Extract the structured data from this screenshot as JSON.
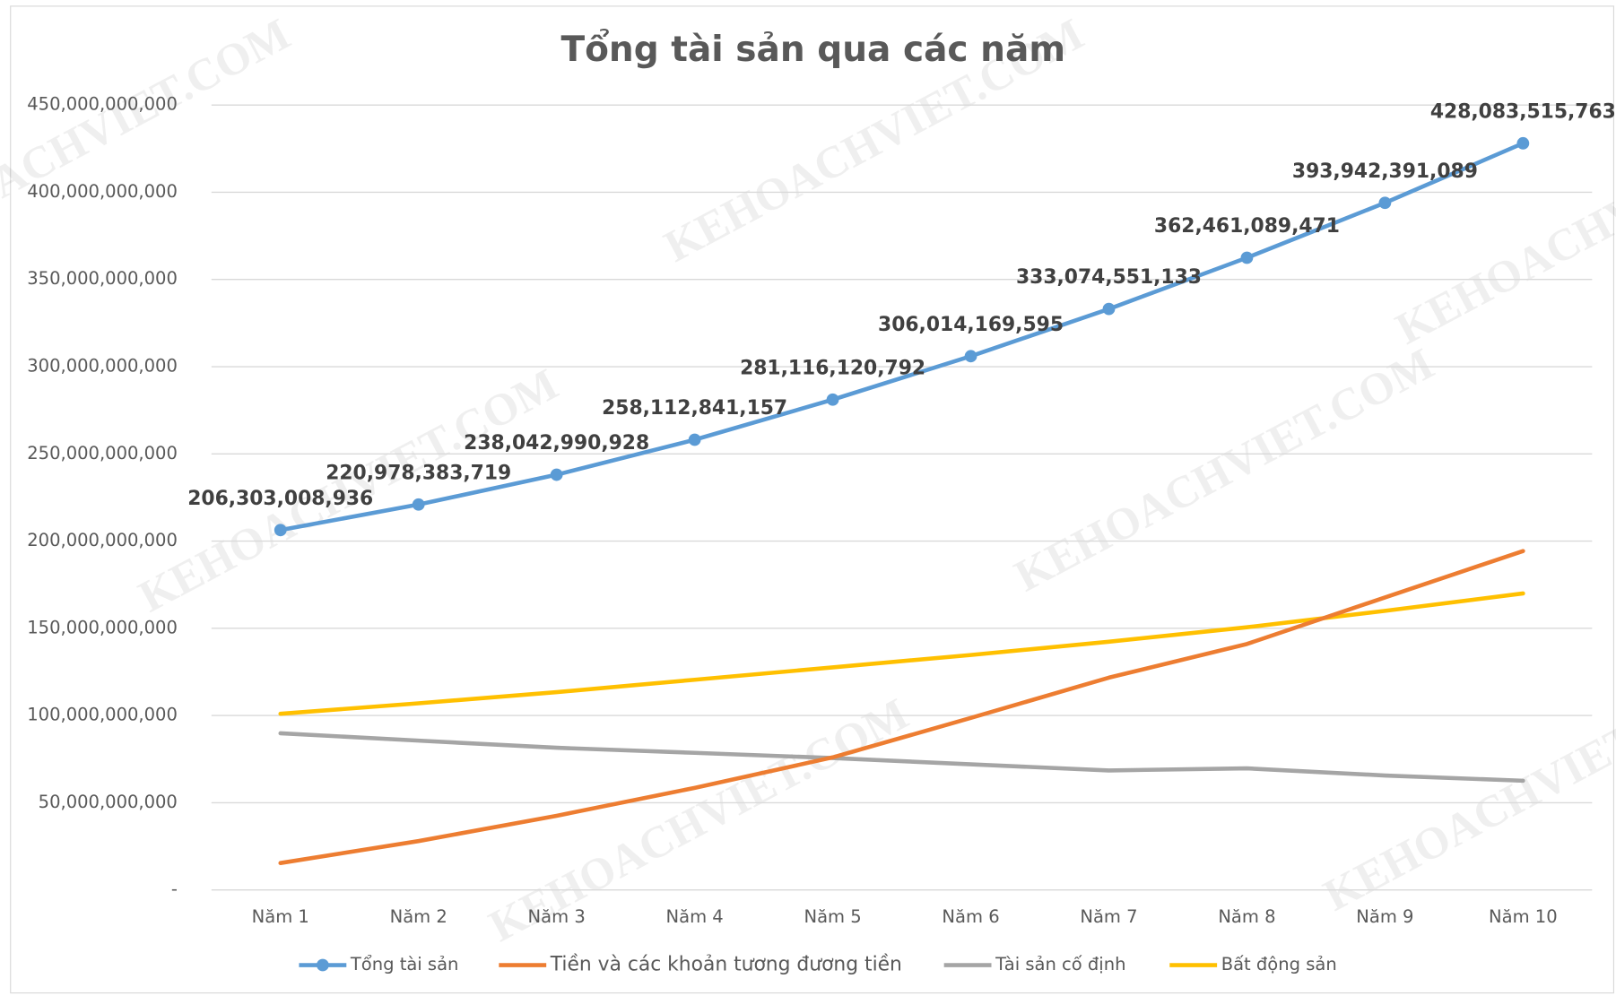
{
  "chart_data": {
    "type": "line",
    "title": "Tổng tài sản qua các năm",
    "watermark": "KEHOACHVIET.COM",
    "categories": [
      "Năm 1",
      "Năm 2",
      "Năm 3",
      "Năm 4",
      "Năm 5",
      "Năm 6",
      "Năm 7",
      "Năm 8",
      "Năm 9",
      "Năm 10"
    ],
    "ylim": [
      0,
      450000000000
    ],
    "yticks": [
      {
        "value": 0,
        "label": "-"
      },
      {
        "value": 50000000000,
        "label": "50,000,000,000"
      },
      {
        "value": 100000000000,
        "label": "100,000,000,000"
      },
      {
        "value": 150000000000,
        "label": "150,000,000,000"
      },
      {
        "value": 200000000000,
        "label": "200,000,000,000"
      },
      {
        "value": 250000000000,
        "label": "250,000,000,000"
      },
      {
        "value": 300000000000,
        "label": "300,000,000,000"
      },
      {
        "value": 350000000000,
        "label": "350,000,000,000"
      },
      {
        "value": 400000000000,
        "label": "400,000,000,000"
      },
      {
        "value": 450000000000,
        "label": "450,000,000,000"
      }
    ],
    "grid": true,
    "legend": "bottom",
    "series": [
      {
        "name": "Tổng tài sản",
        "color": "#5b9bd5",
        "markers": true,
        "values": [
          206303008936,
          220978383719,
          238042990928,
          258112841157,
          281116120792,
          306014169595,
          333074551133,
          362461089471,
          393942391089,
          428083515763
        ],
        "value_labels": [
          "206,303,008,936",
          "220,978,383,719",
          "238,042,990,928",
          "258,112,841,157",
          "281,116,120,792",
          "306,014,169,595",
          "333,074,551,133",
          "362,461,089,471",
          "393,942,391,089",
          "428,083,515,763"
        ]
      },
      {
        "name": "Tiền và các khoản tương đương tiền",
        "color": "#ed7d31",
        "values": [
          15400000000,
          28000000000,
          42500000000,
          58500000000,
          76000000000,
          98600000000,
          121700000000,
          141000000000,
          167700000000,
          194300000000
        ]
      },
      {
        "name": "Tài sản cố định",
        "color": "#a5a5a5",
        "values": [
          89800000000,
          85600000000,
          81500000000,
          78600000000,
          75600000000,
          72000000000,
          68500000000,
          69700000000,
          65600000000,
          62600000000
        ]
      },
      {
        "name": "Bất động sản",
        "color": "#ffc000",
        "values": [
          101000000000,
          107000000000,
          113400000000,
          120500000000,
          127600000000,
          134700000000,
          142300000000,
          150600000000,
          160000000000,
          170000000000
        ]
      }
    ]
  }
}
